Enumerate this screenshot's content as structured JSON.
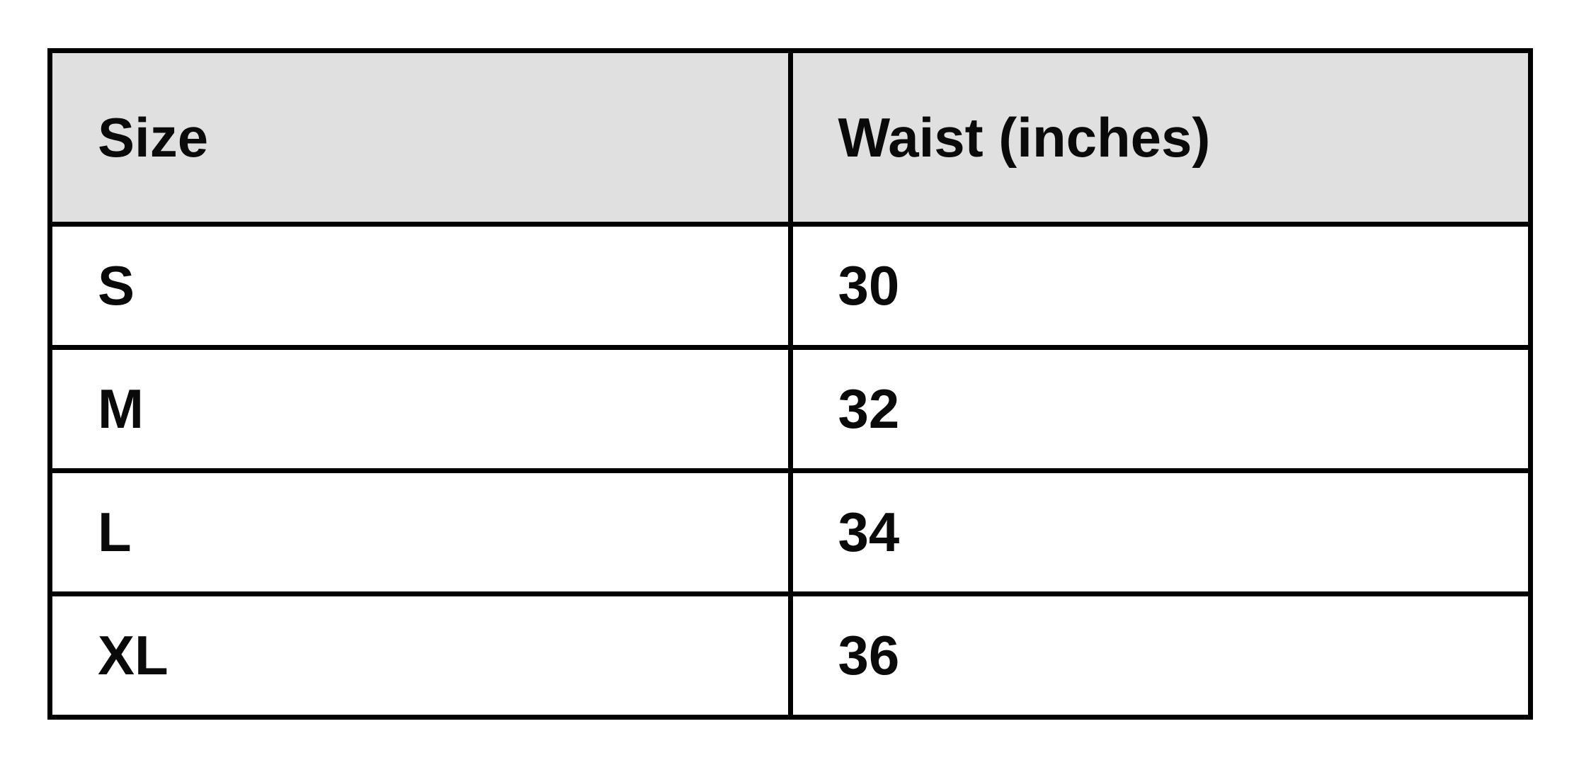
{
  "chart_data": {
    "type": "table",
    "columns": [
      "Size",
      "Waist (inches)"
    ],
    "rows": [
      [
        "S",
        "30"
      ],
      [
        "M",
        "32"
      ],
      [
        "L",
        "34"
      ],
      [
        "XL",
        "36"
      ]
    ]
  },
  "colors": {
    "page_bg": "#ffffff",
    "header_bg": "#e0e0e0",
    "border": "#000000",
    "text": "#0a0a0a"
  }
}
